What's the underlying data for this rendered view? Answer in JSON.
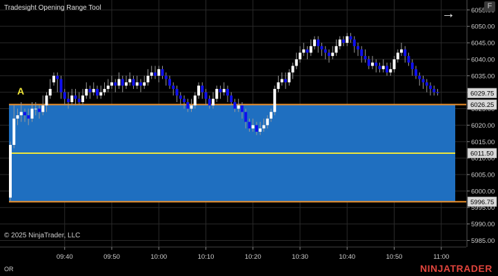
{
  "window": {
    "title": "Tradesight Opening Range Tool",
    "f_button": "F",
    "bottom_left": "OR"
  },
  "footer": {
    "copyright": "© 2025 NinjaTrader, LLC",
    "brand": "NINJATRADER"
  },
  "icons": {
    "arrow": "right-arrow-icon"
  },
  "colors": {
    "range_fill": "#1f6fc0",
    "range_border": "#f0922b",
    "midline": "#f0e63a",
    "up_candle": "#ffffff",
    "down_candle": "#1010ee",
    "marker": "#f0e63a"
  },
  "chart_data": {
    "type": "candlestick",
    "marker_label": "A",
    "ylim": [
      5983,
      6058
    ],
    "yticks": [
      "5985.00",
      "5990.00",
      "5995.00",
      "6000.00",
      "6005.00",
      "6010.00",
      "6015.00",
      "6020.00",
      "6025.00",
      "6030.00",
      "6035.00",
      "6040.00",
      "6045.00",
      "6050.00",
      "6055.00"
    ],
    "xticks": [
      {
        "label": "09:40",
        "bar": 15
      },
      {
        "label": "09:50",
        "bar": 28
      },
      {
        "label": "10:00",
        "bar": 41
      },
      {
        "label": "10:10",
        "bar": 54
      },
      {
        "label": "10:20",
        "bar": 67
      },
      {
        "label": "10:30",
        "bar": 80
      },
      {
        "label": "10:40",
        "bar": 93
      },
      {
        "label": "10:50",
        "bar": 106
      },
      {
        "label": "11:00",
        "bar": 119
      }
    ],
    "opening_range": {
      "high": 6026.25,
      "low": 5996.75,
      "mid": 6011.5
    },
    "price_labels": [
      {
        "value": 6029.75,
        "text": "6029.75"
      },
      {
        "value": 6026.25,
        "text": "6026.25"
      },
      {
        "value": 6011.5,
        "text": "6011.50"
      },
      {
        "value": 5996.75,
        "text": "5996.75"
      }
    ],
    "candles": [
      [
        5998,
        6014,
        6015,
        5997
      ],
      [
        6014,
        6022,
        6026,
        6013
      ],
      [
        6022,
        6023,
        6025,
        6020
      ],
      [
        6023,
        6024,
        6027,
        6021
      ],
      [
        6024,
        6023,
        6025,
        6021
      ],
      [
        6023,
        6022,
        6025,
        6020
      ],
      [
        6022,
        6025,
        6027,
        6021
      ],
      [
        6025,
        6025,
        6027,
        6023
      ],
      [
        6025,
        6024,
        6026,
        6022
      ],
      [
        6024,
        6026,
        6029,
        6023
      ],
      [
        6026,
        6029,
        6030,
        6024
      ],
      [
        6029,
        6031,
        6034,
        6028
      ],
      [
        6033,
        6035,
        6036,
        6032
      ],
      [
        6035,
        6034,
        6036,
        6030
      ],
      [
        6034,
        6030,
        6035,
        6028
      ],
      [
        6030,
        6028,
        6031,
        6026
      ],
      [
        6028,
        6027,
        6030,
        6025
      ],
      [
        6027,
        6029,
        6031,
        6026
      ],
      [
        6029,
        6028,
        6031,
        6026
      ],
      [
        6028,
        6027,
        6030,
        6026
      ],
      [
        6027,
        6029,
        6031,
        6026
      ],
      [
        6029,
        6031,
        6033,
        6028
      ],
      [
        6031,
        6030,
        6032,
        6028
      ],
      [
        6030,
        6031,
        6033,
        6029
      ],
      [
        6031,
        6029,
        6032,
        6028
      ],
      [
        6029,
        6030,
        6032,
        6028
      ],
      [
        6030,
        6031,
        6033,
        6029
      ],
      [
        6031,
        6032,
        6034,
        6030
      ],
      [
        6032,
        6033,
        6035,
        6031
      ],
      [
        6033,
        6032,
        6034,
        6030
      ],
      [
        6032,
        6034,
        6036,
        6031
      ],
      [
        6034,
        6032,
        6035,
        6030
      ],
      [
        6032,
        6033,
        6035,
        6031
      ],
      [
        6033,
        6034,
        6036,
        6032
      ],
      [
        6034,
        6032,
        6035,
        6031
      ],
      [
        6032,
        6033,
        6035,
        6031
      ],
      [
        6033,
        6032,
        6034,
        6030
      ],
      [
        6032,
        6033,
        6035,
        6031
      ],
      [
        6033,
        6035,
        6037,
        6032
      ],
      [
        6035,
        6036,
        6038,
        6034
      ],
      [
        6036,
        6035,
        6038,
        6034
      ],
      [
        6035,
        6037,
        6038,
        6033
      ],
      [
        6037,
        6035,
        6038,
        6034
      ],
      [
        6035,
        6034,
        6036,
        6032
      ],
      [
        6034,
        6032,
        6035,
        6031
      ],
      [
        6032,
        6031,
        6033,
        6029
      ],
      [
        6031,
        6029,
        6032,
        6027
      ],
      [
        6029,
        6028,
        6030,
        6026
      ],
      [
        6028,
        6027,
        6029,
        6025
      ],
      [
        6027,
        6025,
        6028,
        6024
      ],
      [
        6025,
        6026,
        6028,
        6024
      ],
      [
        6026,
        6029,
        6030,
        6025
      ],
      [
        6029,
        6032,
        6033,
        6028
      ],
      [
        6032,
        6030,
        6033,
        6028
      ],
      [
        6030,
        6028,
        6031,
        6026
      ],
      [
        6028,
        6026,
        6029,
        6025
      ],
      [
        6026,
        6028,
        6030,
        6025
      ],
      [
        6028,
        6031,
        6032,
        6027
      ],
      [
        6031,
        6030,
        6032,
        6028
      ],
      [
        6030,
        6031,
        6033,
        6029
      ],
      [
        6031,
        6029,
        6032,
        6027
      ],
      [
        6029,
        6027,
        6030,
        6026
      ],
      [
        6027,
        6025,
        6028,
        6024
      ],
      [
        6025,
        6026,
        6028,
        6024
      ],
      [
        6026,
        6024,
        6027,
        6022
      ],
      [
        6024,
        6021,
        6025,
        6019
      ],
      [
        6021,
        6019,
        6022,
        6018
      ],
      [
        6019,
        6020,
        6022,
        6018
      ],
      [
        6020,
        6018,
        6021,
        6017
      ],
      [
        6018,
        6019,
        6021,
        6017
      ],
      [
        6019,
        6020,
        6022,
        6018
      ],
      [
        6020,
        6022,
        6023,
        6019
      ],
      [
        6022,
        6024,
        6025,
        6021
      ],
      [
        6024,
        6031,
        6032,
        6023
      ],
      [
        6031,
        6033,
        6035,
        6030
      ],
      [
        6033,
        6034,
        6036,
        6032
      ],
      [
        6034,
        6033,
        6036,
        6031
      ],
      [
        6033,
        6036,
        6037,
        6032
      ],
      [
        6036,
        6038,
        6039,
        6034
      ],
      [
        6038,
        6040,
        6042,
        6037
      ],
      [
        6040,
        6042,
        6044,
        6039
      ],
      [
        6042,
        6043,
        6045,
        6041
      ],
      [
        6043,
        6042,
        6044,
        6040
      ],
      [
        6042,
        6044,
        6046,
        6041
      ],
      [
        6044,
        6046,
        6047,
        6043
      ],
      [
        6046,
        6044,
        6047,
        6042
      ],
      [
        6044,
        6043,
        6045,
        6041
      ],
      [
        6043,
        6042,
        6044,
        6040
      ],
      [
        6042,
        6041,
        6043,
        6039
      ],
      [
        6041,
        6042,
        6044,
        6040
      ],
      [
        6042,
        6044,
        6046,
        6041
      ],
      [
        6044,
        6046,
        6047,
        6043
      ],
      [
        6046,
        6045,
        6047,
        6044
      ],
      [
        6045,
        6047,
        6048,
        6044
      ],
      [
        6047,
        6046,
        6048,
        6045
      ],
      [
        6046,
        6044,
        6047,
        6042
      ],
      [
        6044,
        6043,
        6045,
        6041
      ],
      [
        6043,
        6041,
        6044,
        6039
      ],
      [
        6041,
        6040,
        6043,
        6039
      ],
      [
        6040,
        6038,
        6041,
        6037
      ],
      [
        6038,
        6039,
        6041,
        6037
      ],
      [
        6039,
        6038,
        6040,
        6036
      ],
      [
        6038,
        6037,
        6039,
        6036
      ],
      [
        6037,
        6038,
        6040,
        6036
      ],
      [
        6038,
        6036,
        6039,
        6035
      ],
      [
        6036,
        6037,
        6039,
        6035
      ],
      [
        6037,
        6040,
        6041,
        6036
      ],
      [
        6040,
        6042,
        6043,
        6039
      ],
      [
        6042,
        6043,
        6045,
        6041
      ],
      [
        6043,
        6041,
        6044,
        6039
      ],
      [
        6041,
        6039,
        6042,
        6038
      ],
      [
        6039,
        6037,
        6040,
        6035
      ],
      [
        6037,
        6035,
        6038,
        6034
      ],
      [
        6035,
        6034,
        6036,
        6032
      ],
      [
        6034,
        6033,
        6035,
        6031
      ],
      [
        6033,
        6032,
        6034,
        6030
      ],
      [
        6032,
        6031,
        6033,
        6029
      ],
      [
        6031,
        6030,
        6032,
        6029
      ],
      [
        6030,
        6029.75,
        6031,
        6029
      ]
    ]
  }
}
